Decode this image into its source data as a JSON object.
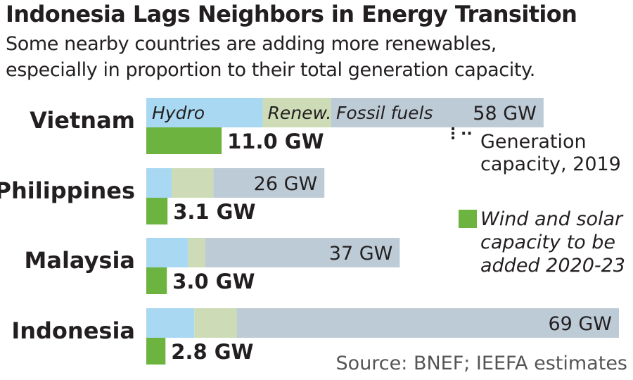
{
  "title": "Indonesia Lags Neighbors in Energy Transition",
  "subtitle_line1": "Some nearby countries are adding more renewables,",
  "subtitle_line2": "especially in proportion to their total generation capacity.",
  "source": "Source: BNEF; IEEFA estimates",
  "legend": {
    "capacity_line1": "Generation",
    "capacity_line2": "capacity, 2019",
    "added_line1": "Wind and solar",
    "added_line2": "capacity to be",
    "added_line3": "added 2020-23"
  },
  "colors": {
    "hydro": "#a9d8f2",
    "renew": "#cddcb6",
    "fossil": "#bdcbd6",
    "added": "#6cb33f"
  },
  "chart_data": {
    "type": "bar",
    "title": "Indonesia Lags Neighbors in Energy Transition",
    "segment_labels": [
      "Hydro",
      "Renew.",
      "Fossil fuels"
    ],
    "categories": [
      "Vietnam",
      "Philippines",
      "Malaysia",
      "Indonesia"
    ],
    "series": [
      {
        "name": "Hydro",
        "values": [
          17.0,
          3.7,
          6.1,
          7.0
        ]
      },
      {
        "name": "Renewables",
        "values": [
          10.0,
          6.1,
          2.5,
          6.2
        ]
      },
      {
        "name": "Fossil fuels",
        "values": [
          31.0,
          16.2,
          28.4,
          55.8
        ]
      },
      {
        "name": "Generation capacity, 2019 (total)",
        "values": [
          58,
          26,
          37,
          69
        ]
      },
      {
        "name": "Wind and solar capacity to be added 2020-23",
        "values": [
          11.0,
          3.1,
          3.0,
          2.8
        ]
      }
    ],
    "total_labels": [
      "58 GW",
      "26 GW",
      "37 GW",
      "69 GW"
    ],
    "added_labels": [
      "11.0 GW",
      "3.1 GW",
      "3.0 GW",
      "2.8 GW"
    ],
    "unit": "GW"
  }
}
